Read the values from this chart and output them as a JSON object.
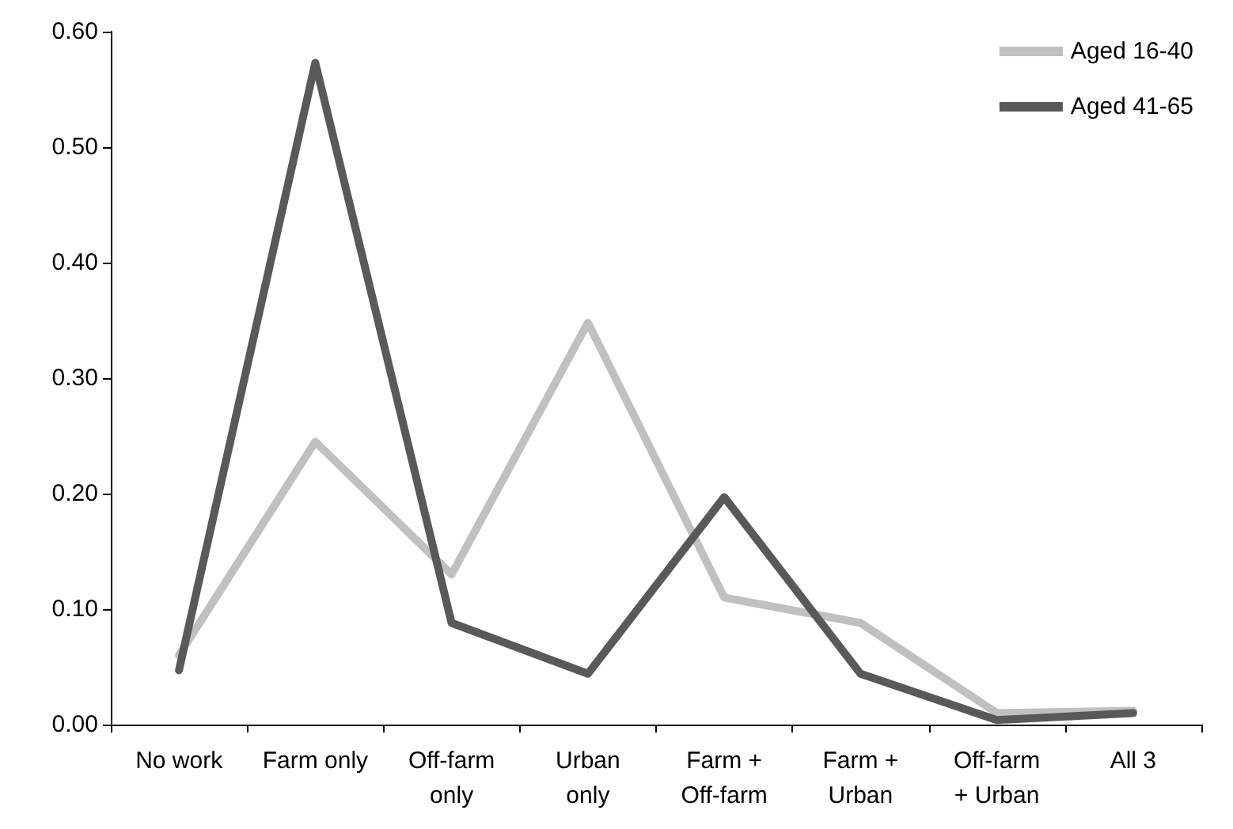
{
  "chart_data": {
    "type": "line",
    "categories": [
      "No work",
      "Farm only",
      "Off-farm\nonly",
      "Urban\nonly",
      "Farm +\nOff-farm",
      "Farm +\nUrban",
      "Off-farm\n+ Urban",
      "All 3"
    ],
    "series": [
      {
        "name": "Aged 16-40",
        "color": "#c0c0c0",
        "values": [
          0.06,
          0.245,
          0.13,
          0.348,
          0.11,
          0.088,
          0.01,
          0.012
        ]
      },
      {
        "name": "Aged 41-65",
        "color": "#595959",
        "values": [
          0.047,
          0.573,
          0.088,
          0.044,
          0.197,
          0.044,
          0.004,
          0.01
        ]
      }
    ],
    "ylim": [
      0,
      0.6
    ],
    "yticks": [
      {
        "value": 0,
        "label": "0.00"
      },
      {
        "value": 0.1,
        "label": "0.10"
      },
      {
        "value": 0.2,
        "label": "0.20"
      },
      {
        "value": 0.3,
        "label": "0.30"
      },
      {
        "value": 0.4,
        "label": "0.40"
      },
      {
        "value": 0.5,
        "label": "0.50"
      },
      {
        "value": 0.6,
        "label": "0.60"
      }
    ],
    "grid": false,
    "legend": "top right",
    "marker": "none",
    "line_style": "solid"
  }
}
